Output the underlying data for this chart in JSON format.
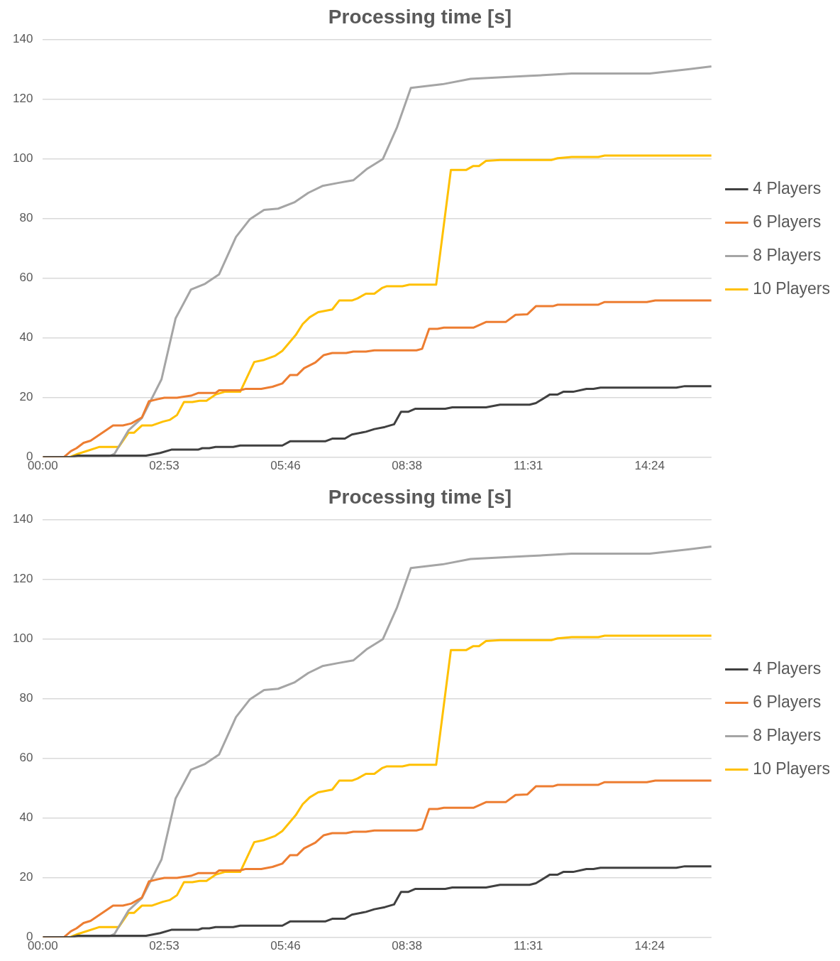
{
  "chart_data": [
    {
      "type": "line",
      "title": "Processing time [s]",
      "xlim": [
        0,
        952
      ],
      "xticks": [
        {
          "value": 0,
          "label": "00:00"
        },
        {
          "value": 172.8,
          "label": "02:53"
        },
        {
          "value": 345.6,
          "label": "05:46"
        },
        {
          "value": 518.4,
          "label": "08:38"
        },
        {
          "value": 691.2,
          "label": "11:31"
        },
        {
          "value": 864,
          "label": "14:24"
        }
      ],
      "ylim": [
        0,
        140
      ],
      "yticks": [
        0,
        20,
        40,
        60,
        80,
        100,
        120,
        140
      ],
      "grid": "y",
      "legend": "right",
      "marker": "none",
      "line_style": "solid",
      "series": [
        {
          "name": "4 Players",
          "color": "#404040",
          "x": [
            0,
            39,
            50,
            147,
            167,
            183,
            221,
            227,
            237,
            246,
            271,
            281,
            341,
            352,
            402,
            412,
            430,
            440,
            460,
            472,
            487,
            500,
            510,
            520,
            530,
            573,
            583,
            631,
            651,
            693,
            702,
            722,
            733,
            741,
            755,
            774,
            784,
            794,
            902,
            914,
            952
          ],
          "values": [
            0,
            0,
            0.5,
            0.5,
            1.4,
            2.5,
            2.5,
            3,
            3,
            3.4,
            3.4,
            3.9,
            3.9,
            5.3,
            5.3,
            6.2,
            6.2,
            7.6,
            8.5,
            9.4,
            10.1,
            11,
            15.2,
            15.2,
            16.2,
            16.2,
            16.7,
            16.7,
            17.6,
            17.6,
            18.1,
            21,
            21,
            21.9,
            21.9,
            22.9,
            22.9,
            23.3,
            23.3,
            23.8,
            23.8
          ]
        },
        {
          "name": "6 Players",
          "color": "#ed7d31",
          "x": [
            0,
            30,
            40,
            48,
            58,
            68,
            90,
            100,
            114,
            126,
            141,
            151,
            163,
            173,
            191,
            211,
            221,
            246,
            251,
            281,
            289,
            311,
            327,
            341,
            352,
            362,
            372,
            388,
            400,
            412,
            432,
            442,
            460,
            472,
            532,
            540,
            550,
            562,
            571,
            613,
            631,
            659,
            673,
            690,
            702,
            726,
            733,
            791,
            800,
            860,
            872,
            952
          ],
          "values": [
            0,
            0,
            2,
            3,
            4.8,
            5.5,
            9,
            10.6,
            10.6,
            11.3,
            13.3,
            18.7,
            19.4,
            19.9,
            19.9,
            20.6,
            21.5,
            21.5,
            22.4,
            22.4,
            22.9,
            22.9,
            23.6,
            24.7,
            27.5,
            27.5,
            29.8,
            31.7,
            34.2,
            34.9,
            34.9,
            35.4,
            35.4,
            35.8,
            35.8,
            36.3,
            43,
            43,
            43.4,
            43.4,
            45.3,
            45.3,
            47.7,
            47.9,
            50.6,
            50.6,
            51.1,
            51.1,
            52,
            52,
            52.5,
            52.5
          ]
        },
        {
          "name": "8 Players",
          "color": "#a5a5a5",
          "x": [
            0,
            92,
            102,
            122,
            141,
            169,
            189,
            211,
            231,
            251,
            275,
            295,
            315,
            335,
            358,
            378,
            398,
            420,
            442,
            462,
            484,
            504,
            524,
            569,
            609,
            649,
            693,
            717,
            753,
            864,
            919,
            952
          ],
          "values": [
            0,
            0,
            1.1,
            9,
            13.1,
            26.1,
            46.5,
            56.2,
            58.1,
            61.3,
            73.8,
            79.8,
            82.9,
            83.3,
            85.4,
            88.6,
            90.9,
            91.9,
            92.8,
            96.7,
            99.9,
            110.4,
            123.8,
            125,
            126.8,
            127.3,
            127.8,
            128.1,
            128.6,
            128.6,
            130,
            131
          ]
        },
        {
          "name": "10 Players",
          "color": "#ffc000",
          "x": [
            0,
            38,
            50,
            80,
            108,
            122,
            130,
            141,
            155,
            171,
            181,
            191,
            201,
            213,
            223,
            233,
            246,
            259,
            281,
            301,
            315,
            331,
            341,
            360,
            370,
            380,
            392,
            412,
            422,
            440,
            448,
            460,
            472,
            483,
            490,
            512,
            522,
            560,
            581,
            603,
            613,
            621,
            631,
            651,
            724,
            733,
            753,
            791,
            800,
            952
          ],
          "values": [
            0,
            0,
            1.1,
            3.4,
            3.4,
            8.2,
            8.2,
            10.6,
            10.6,
            11.9,
            12.5,
            14.1,
            18.5,
            18.5,
            18.9,
            18.9,
            21,
            21.9,
            21.9,
            31.9,
            32.6,
            34,
            35.6,
            40.9,
            44.6,
            46.9,
            48.6,
            49.5,
            52.5,
            52.5,
            53.2,
            54.8,
            54.8,
            56.7,
            57.3,
            57.3,
            57.8,
            57.8,
            96.3,
            96.3,
            97.6,
            97.6,
            99.3,
            99.6,
            99.6,
            100.2,
            100.6,
            100.6,
            101.1,
            101.1
          ]
        }
      ]
    },
    {
      "type": "line",
      "title": "Processing time [s]",
      "xlim": [
        0,
        952
      ],
      "xticks": [
        {
          "value": 0,
          "label": "00:00"
        },
        {
          "value": 172.8,
          "label": "02:53"
        },
        {
          "value": 345.6,
          "label": "05:46"
        },
        {
          "value": 518.4,
          "label": "08:38"
        },
        {
          "value": 691.2,
          "label": "11:31"
        },
        {
          "value": 864,
          "label": "14:24"
        }
      ],
      "ylim": [
        0,
        140
      ],
      "yticks": [
        0,
        20,
        40,
        60,
        80,
        100,
        120,
        140
      ],
      "grid": "y",
      "legend": "right",
      "marker": "none",
      "line_style": "solid",
      "series": [
        {
          "name": "4 Players",
          "color": "#404040",
          "x": [
            0,
            39,
            50,
            147,
            167,
            183,
            221,
            227,
            237,
            246,
            271,
            281,
            341,
            352,
            402,
            412,
            430,
            440,
            460,
            472,
            487,
            500,
            510,
            520,
            530,
            573,
            583,
            631,
            651,
            693,
            702,
            722,
            733,
            741,
            755,
            774,
            784,
            794,
            902,
            914,
            952
          ],
          "values": [
            0,
            0,
            0.5,
            0.5,
            1.4,
            2.5,
            2.5,
            3,
            3,
            3.4,
            3.4,
            3.9,
            3.9,
            5.3,
            5.3,
            6.2,
            6.2,
            7.6,
            8.5,
            9.4,
            10.1,
            11,
            15.2,
            15.2,
            16.2,
            16.2,
            16.7,
            16.7,
            17.6,
            17.6,
            18.1,
            21,
            21,
            21.9,
            21.9,
            22.9,
            22.9,
            23.3,
            23.3,
            23.8,
            23.8
          ]
        },
        {
          "name": "6 Players",
          "color": "#ed7d31",
          "x": [
            0,
            30,
            40,
            48,
            58,
            68,
            90,
            100,
            114,
            126,
            141,
            151,
            163,
            173,
            191,
            211,
            221,
            246,
            251,
            281,
            289,
            311,
            327,
            341,
            352,
            362,
            372,
            388,
            400,
            412,
            432,
            442,
            460,
            472,
            532,
            540,
            550,
            562,
            571,
            613,
            631,
            659,
            673,
            690,
            702,
            726,
            733,
            791,
            800,
            860,
            872,
            952
          ],
          "values": [
            0,
            0,
            2,
            3,
            4.8,
            5.5,
            9,
            10.6,
            10.6,
            11.3,
            13.3,
            18.7,
            19.4,
            19.9,
            19.9,
            20.6,
            21.5,
            21.5,
            22.4,
            22.4,
            22.9,
            22.9,
            23.6,
            24.7,
            27.5,
            27.5,
            29.8,
            31.7,
            34.2,
            34.9,
            34.9,
            35.4,
            35.4,
            35.8,
            35.8,
            36.3,
            43,
            43,
            43.4,
            43.4,
            45.3,
            45.3,
            47.7,
            47.9,
            50.6,
            50.6,
            51.1,
            51.1,
            52,
            52,
            52.5,
            52.5
          ]
        },
        {
          "name": "8 Players",
          "color": "#a5a5a5",
          "x": [
            0,
            92,
            102,
            122,
            141,
            169,
            189,
            211,
            231,
            251,
            275,
            295,
            315,
            335,
            358,
            378,
            398,
            420,
            442,
            462,
            484,
            504,
            524,
            569,
            609,
            649,
            693,
            717,
            753,
            864,
            919,
            952
          ],
          "values": [
            0,
            0,
            1.1,
            9,
            13.1,
            26.1,
            46.5,
            56.2,
            58.1,
            61.3,
            73.8,
            79.8,
            82.9,
            83.3,
            85.4,
            88.6,
            90.9,
            91.9,
            92.8,
            96.7,
            99.9,
            110.4,
            123.8,
            125,
            126.8,
            127.3,
            127.8,
            128.1,
            128.6,
            128.6,
            130,
            131
          ]
        },
        {
          "name": "10 Players",
          "color": "#ffc000",
          "x": [
            0,
            38,
            50,
            80,
            108,
            122,
            130,
            141,
            155,
            171,
            181,
            191,
            201,
            213,
            223,
            233,
            246,
            259,
            281,
            301,
            315,
            331,
            341,
            360,
            370,
            380,
            392,
            412,
            422,
            440,
            448,
            460,
            472,
            483,
            490,
            512,
            522,
            560,
            581,
            603,
            613,
            621,
            631,
            651,
            724,
            733,
            753,
            791,
            800,
            952
          ],
          "values": [
            0,
            0,
            1.1,
            3.4,
            3.4,
            8.2,
            8.2,
            10.6,
            10.6,
            11.9,
            12.5,
            14.1,
            18.5,
            18.5,
            18.9,
            18.9,
            21,
            21.9,
            21.9,
            31.9,
            32.6,
            34,
            35.6,
            40.9,
            44.6,
            46.9,
            48.6,
            49.5,
            52.5,
            52.5,
            53.2,
            54.8,
            54.8,
            56.7,
            57.3,
            57.3,
            57.8,
            57.8,
            96.3,
            96.3,
            97.6,
            97.6,
            99.3,
            99.6,
            99.6,
            100.2,
            100.6,
            100.6,
            101.1,
            101.1
          ]
        }
      ]
    }
  ]
}
